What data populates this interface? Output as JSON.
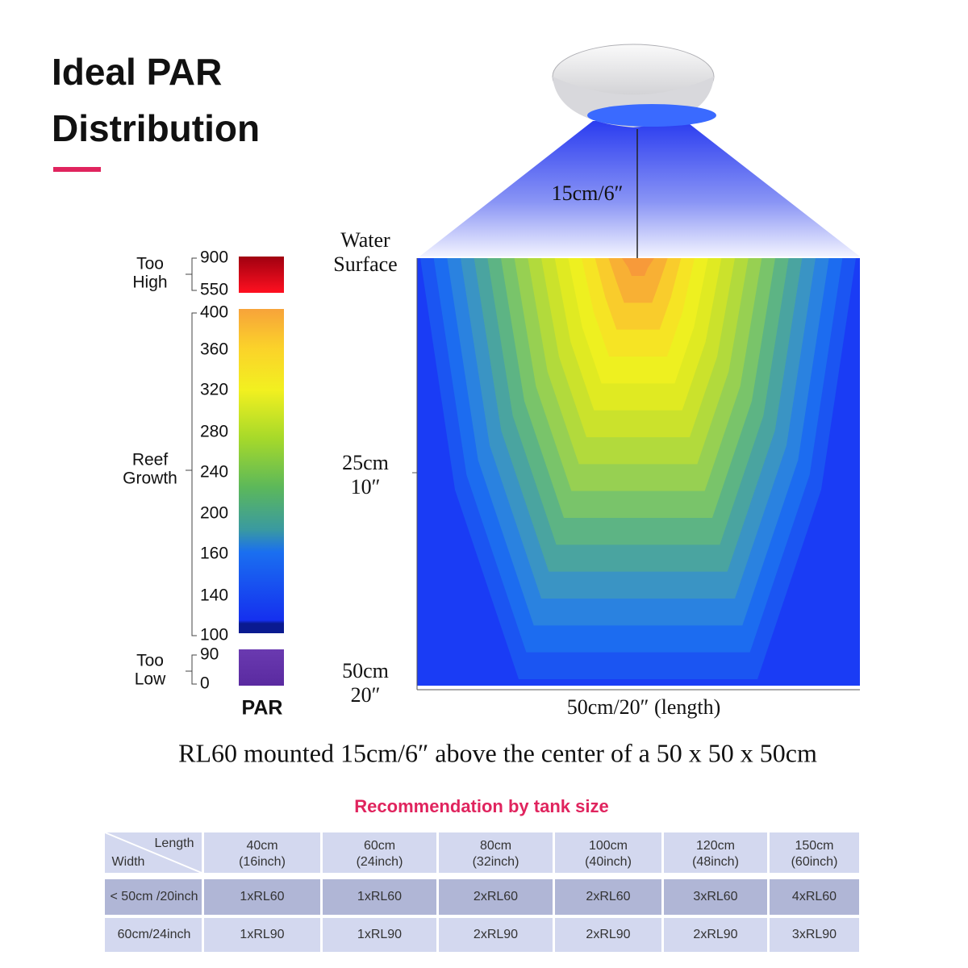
{
  "header": {
    "title_lines": [
      "Ideal PAR",
      "Distribution"
    ]
  },
  "par_scale": {
    "too_high": {
      "label_lines": [
        "Too",
        "High"
      ],
      "ticks": [
        900,
        550
      ]
    },
    "reef_growth": {
      "label_lines": [
        "Reef",
        "Growth"
      ],
      "ticks": [
        400,
        360,
        320,
        280,
        240,
        200,
        160,
        140,
        100
      ]
    },
    "too_low": {
      "label_lines": [
        "Too",
        "Low"
      ],
      "ticks": [
        90,
        0
      ]
    },
    "axis_label": "PAR"
  },
  "diagram": {
    "mount_height": "15cm/6″",
    "surface_lines": [
      "Water",
      "Surface"
    ],
    "mid_depth_lines": [
      "25cm",
      "10″"
    ],
    "bottom_depth_lines": [
      "50cm",
      "20″"
    ],
    "length_label": "50cm/20″ (length)"
  },
  "caption": "RL60 mounted 15cm/6″ above the center of a 50 x 50 x 50cm",
  "table": {
    "title": "Recommendation by tank size",
    "corner": {
      "column_header": "Length",
      "row_header": "Width"
    },
    "columns": [
      [
        "40cm",
        "(16inch)"
      ],
      [
        "60cm",
        "(24inch)"
      ],
      [
        "80cm",
        "(32inch)"
      ],
      [
        "100cm",
        "(40inch)"
      ],
      [
        "120cm",
        "(48inch)"
      ],
      [
        "150cm",
        "(60inch)"
      ]
    ],
    "rows": [
      {
        "width": "< 50cm /20inch",
        "cells": [
          "1xRL60",
          "1xRL60",
          "2xRL60",
          "2xRL60",
          "3xRL60",
          "4xRL60"
        ]
      },
      {
        "width": "60cm/24inch",
        "cells": [
          "1xRL90",
          "1xRL90",
          "2xRL90",
          "2xRL90",
          "2xRL90",
          "3xRL90"
        ]
      }
    ]
  }
}
